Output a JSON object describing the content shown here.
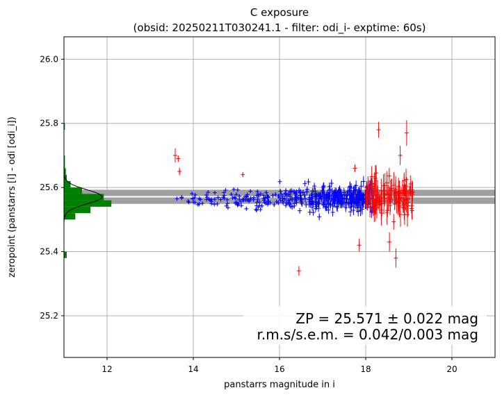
{
  "chart_data": {
    "type": "scatter",
    "title_line1": "C exposure",
    "title_line2": "(obsid: 20250211T030241.1 - filter: odi_i- exptime: 60s)",
    "xlabel": "panstarrs magnitude in i",
    "ylabel": "zeropoint (panstarrs [i] - odi [odi_i])",
    "xlim": [
      11.0,
      21.0
    ],
    "ylim": [
      25.07,
      26.07
    ],
    "xticks": [
      12,
      14,
      16,
      18,
      20
    ],
    "yticks": [
      25.2,
      25.4,
      25.6,
      25.8,
      26.0
    ],
    "grid": true,
    "zeropoint": 25.571,
    "zp_band_sigma": 0.022,
    "annotation_line1": "ZP = 25.571 ± 0.022 mag",
    "annotation_line2": "r.m.s/s.e.m. = 0.042/0.003 mag",
    "colors": {
      "used": "#0000ff",
      "rejected": "#ff0000",
      "histogram": "#008000",
      "band": "#a0a0a0",
      "zp_line": "#ffffff",
      "fit_curve": "#000000"
    },
    "histogram": {
      "bins": [
        {
          "y0": 25.38,
          "y1": 25.4,
          "count": 0.3
        },
        {
          "y0": 25.5,
          "y1": 25.52,
          "count": 1.2
        },
        {
          "y0": 25.52,
          "y1": 25.54,
          "count": 2.8
        },
        {
          "y0": 25.54,
          "y1": 25.56,
          "count": 5.0
        },
        {
          "y0": 25.56,
          "y1": 25.58,
          "count": 4.2
        },
        {
          "y0": 25.58,
          "y1": 25.6,
          "count": 1.9
        },
        {
          "y0": 25.6,
          "y1": 25.62,
          "count": 0.7
        },
        {
          "y0": 25.62,
          "y1": 25.64,
          "count": 0.3
        },
        {
          "y0": 25.64,
          "y1": 25.66,
          "count": 0.2
        },
        {
          "y0": 25.66,
          "y1": 25.68,
          "count": 0.1
        },
        {
          "y0": 25.68,
          "y1": 25.7,
          "count": 0.1
        },
        {
          "y0": 25.78,
          "y1": 25.8,
          "count": 0.1
        }
      ],
      "x_scale_mag_per_count": 0.22
    },
    "gauss_peak_count": 4.0,
    "gauss_sigma": 0.022,
    "series_used_generated": {
      "n": 420,
      "x_min": 13.6,
      "x_max": 18.15,
      "y_sigma": 0.011,
      "err_base": 0.003,
      "err_slope": 0.005
    },
    "series_rejected_generated": {
      "n": 130,
      "x_min": 18.0,
      "x_max": 19.1,
      "y_sigma": 0.028,
      "err_base": 0.012,
      "err_slope": 0.03
    },
    "rejected_outliers": [
      {
        "x": 13.58,
        "y": 25.7,
        "err": 0.022
      },
      {
        "x": 13.65,
        "y": 25.69,
        "err": 0.01
      },
      {
        "x": 13.68,
        "y": 25.65,
        "err": 0.012
      },
      {
        "x": 15.15,
        "y": 25.64,
        "err": 0.008
      },
      {
        "x": 16.45,
        "y": 25.34,
        "err": 0.015
      },
      {
        "x": 17.75,
        "y": 25.66,
        "err": 0.012
      },
      {
        "x": 17.85,
        "y": 25.42,
        "err": 0.02
      },
      {
        "x": 18.3,
        "y": 25.78,
        "err": 0.025
      },
      {
        "x": 18.95,
        "y": 25.77,
        "err": 0.04
      },
      {
        "x": 18.55,
        "y": 25.43,
        "err": 0.03
      },
      {
        "x": 18.7,
        "y": 25.38,
        "err": 0.03
      },
      {
        "x": 18.8,
        "y": 25.7,
        "err": 0.03
      }
    ]
  }
}
